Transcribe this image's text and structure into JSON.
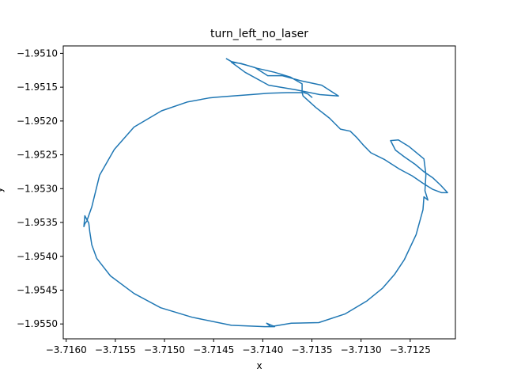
{
  "chart_data": {
    "type": "line",
    "title": "turn_left_no_laser",
    "xlabel": "x",
    "ylabel": "y",
    "xlim": [
      -3.71603,
      -3.71204
    ],
    "ylim": [
      -1.95522,
      -1.95089
    ],
    "x_ticks": [
      -3.716,
      -3.7155,
      -3.715,
      -3.7145,
      -3.714,
      -3.7135,
      -3.713,
      -3.7125
    ],
    "x_tick_labels": [
      "−3.7160",
      "−3.7155",
      "−3.7150",
      "−3.7145",
      "−3.7140",
      "−3.7135",
      "−3.7130",
      "−3.7125"
    ],
    "y_ticks": [
      -1.951,
      -1.9515,
      -1.952,
      -1.9525,
      -1.953,
      -1.9535,
      -1.954,
      -1.9545,
      -1.955
    ],
    "y_tick_labels": [
      "−1.9510",
      "−1.9515",
      "−1.9520",
      "−1.9525",
      "−1.9530",
      "−1.9535",
      "−1.9540",
      "−1.9545",
      "−1.9550"
    ],
    "grid": false,
    "legend": "none",
    "series": [
      {
        "color": "#1f77b4",
        "x": [
          -3.71437,
          -3.71432,
          -3.7142,
          -3.71408,
          -3.71395,
          -3.7138,
          -3.7136,
          -3.7134,
          -3.71323,
          -3.71342,
          -3.71366,
          -3.71394,
          -3.71418,
          -3.71432,
          -3.71422,
          -3.71406,
          -3.71388,
          -3.71372,
          -3.7136,
          -3.7136,
          -3.71359,
          -3.71346,
          -3.71332,
          -3.71321,
          -3.71311,
          -3.71304,
          -3.71298,
          -3.7129,
          -3.71276,
          -3.71261,
          -3.71248,
          -3.71237,
          -3.71227,
          -3.71218,
          -3.71212,
          -3.71219,
          -3.71227,
          -3.71236,
          -3.71245,
          -3.71256,
          -3.71265,
          -3.7127,
          -3.71262,
          -3.71251,
          -3.71236,
          -3.71234,
          -3.71235,
          -3.71232,
          -3.71236,
          -3.71237,
          -3.71244,
          -3.71256,
          -3.71266,
          -3.71278,
          -3.71294,
          -3.71316,
          -3.71343,
          -3.71371,
          -3.71392,
          -3.71396,
          -3.71388,
          -3.71398,
          -3.71432,
          -3.71472,
          -3.71504,
          -3.71531,
          -3.71555,
          -3.71569,
          -3.71574,
          -3.71576,
          -3.71577,
          -3.71581,
          -3.71582,
          -3.71581,
          -3.71579,
          -3.71574,
          -3.71566,
          -3.71551,
          -3.71531,
          -3.71503,
          -3.71477,
          -3.71455,
          -3.71448,
          -3.71431,
          -3.71412,
          -3.71394,
          -3.71375,
          -3.71358,
          -3.71354,
          -3.7135
        ],
        "y": [
          -1.95108,
          -1.95112,
          -1.95116,
          -1.95121,
          -1.95133,
          -1.95133,
          -1.95141,
          -1.95147,
          -1.95163,
          -1.95161,
          -1.95154,
          -1.95147,
          -1.95128,
          -1.95113,
          -1.95115,
          -1.95122,
          -1.95128,
          -1.95135,
          -1.95145,
          -1.95158,
          -1.95163,
          -1.9518,
          -1.95196,
          -1.95212,
          -1.95215,
          -1.95225,
          -1.95235,
          -1.95247,
          -1.95257,
          -1.95271,
          -1.95281,
          -1.95292,
          -1.95301,
          -1.95306,
          -1.95306,
          -1.95295,
          -1.95284,
          -1.95275,
          -1.95264,
          -1.95253,
          -1.95243,
          -1.95229,
          -1.95228,
          -1.95238,
          -1.95256,
          -1.95279,
          -1.95303,
          -1.95317,
          -1.95312,
          -1.95331,
          -1.95368,
          -1.95405,
          -1.95427,
          -1.95447,
          -1.95466,
          -1.95485,
          -1.95498,
          -1.95499,
          -1.95504,
          -1.95499,
          -1.95504,
          -1.95504,
          -1.95502,
          -1.9549,
          -1.95476,
          -1.95455,
          -1.95429,
          -1.95403,
          -1.95383,
          -1.95364,
          -1.95351,
          -1.9534,
          -1.95356,
          -1.95352,
          -1.95348,
          -1.95327,
          -1.9528,
          -1.95242,
          -1.95209,
          -1.95185,
          -1.95172,
          -1.95166,
          -1.95165,
          -1.95163,
          -1.95161,
          -1.95159,
          -1.95158,
          -1.95158,
          -1.9516,
          -1.95165
        ]
      }
    ]
  }
}
